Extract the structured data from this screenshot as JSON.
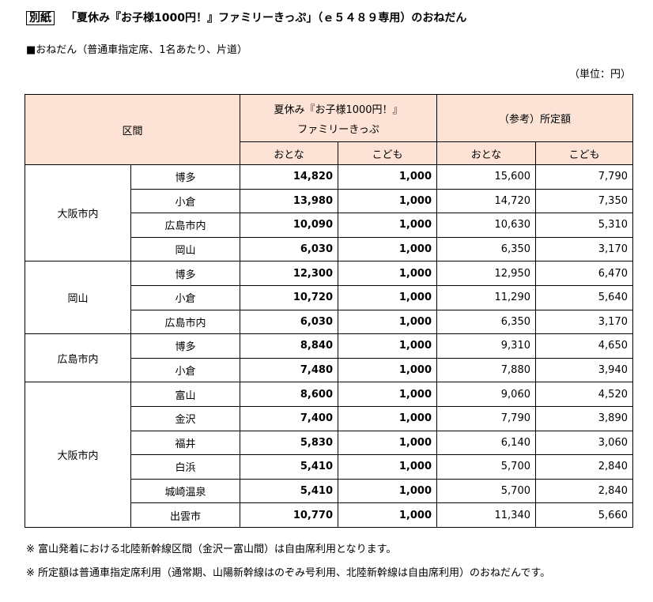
{
  "title": {
    "tag": "別紙",
    "text": "「夏休み『お子様1000円！』ファミリーきっぷ」（ｅ５４８９専用）のおねだん"
  },
  "subtitle": "■おねだん（普通車指定席、1名あたり、片道）",
  "unit": "（単位：円）",
  "header": {
    "section": "区間",
    "ticket_line1": "夏休み『お子様1000円！』",
    "ticket_line2": "ファミリーきっぷ",
    "reference": "（参考）所定額",
    "adult": "おとな",
    "child": "こども"
  },
  "groups": [
    {
      "origin": "大阪市内",
      "rows": [
        [
          "博多",
          "14,820",
          "1,000",
          "15,600",
          "7,790"
        ],
        [
          "小倉",
          "13,980",
          "1,000",
          "14,720",
          "7,350"
        ],
        [
          "広島市内",
          "10,090",
          "1,000",
          "10,630",
          "5,310"
        ],
        [
          "岡山",
          "6,030",
          "1,000",
          "6,350",
          "3,170"
        ]
      ]
    },
    {
      "origin": "岡山",
      "rows": [
        [
          "博多",
          "12,300",
          "1,000",
          "12,950",
          "6,470"
        ],
        [
          "小倉",
          "10,720",
          "1,000",
          "11,290",
          "5,640"
        ],
        [
          "広島市内",
          "6,030",
          "1,000",
          "6,350",
          "3,170"
        ]
      ]
    },
    {
      "origin": "広島市内",
      "rows": [
        [
          "博多",
          "8,840",
          "1,000",
          "9,310",
          "4,650"
        ],
        [
          "小倉",
          "7,480",
          "1,000",
          "7,880",
          "3,940"
        ]
      ]
    },
    {
      "origin": "大阪市内",
      "rows": [
        [
          "富山",
          "8,600",
          "1,000",
          "9,060",
          "4,520"
        ],
        [
          "金沢",
          "7,400",
          "1,000",
          "7,790",
          "3,890"
        ],
        [
          "福井",
          "5,830",
          "1,000",
          "6,140",
          "3,060"
        ],
        [
          "白浜",
          "5,410",
          "1,000",
          "5,700",
          "2,840"
        ],
        [
          "城崎温泉",
          "5,410",
          "1,000",
          "5,700",
          "2,840"
        ],
        [
          "出雲市",
          "10,770",
          "1,000",
          "11,340",
          "5,660"
        ]
      ]
    }
  ],
  "notes": [
    "※ 富山発着における北陸新幹線区間（金沢ー富山間）は自由席利用となります。",
    "※ 所定額は普通車指定席利用（通常期、山陽新幹線はのぞみ号利用、北陸新幹線は自由席利用）のおねだんです。"
  ],
  "colors": {
    "header_bg": "#fde3d6"
  }
}
